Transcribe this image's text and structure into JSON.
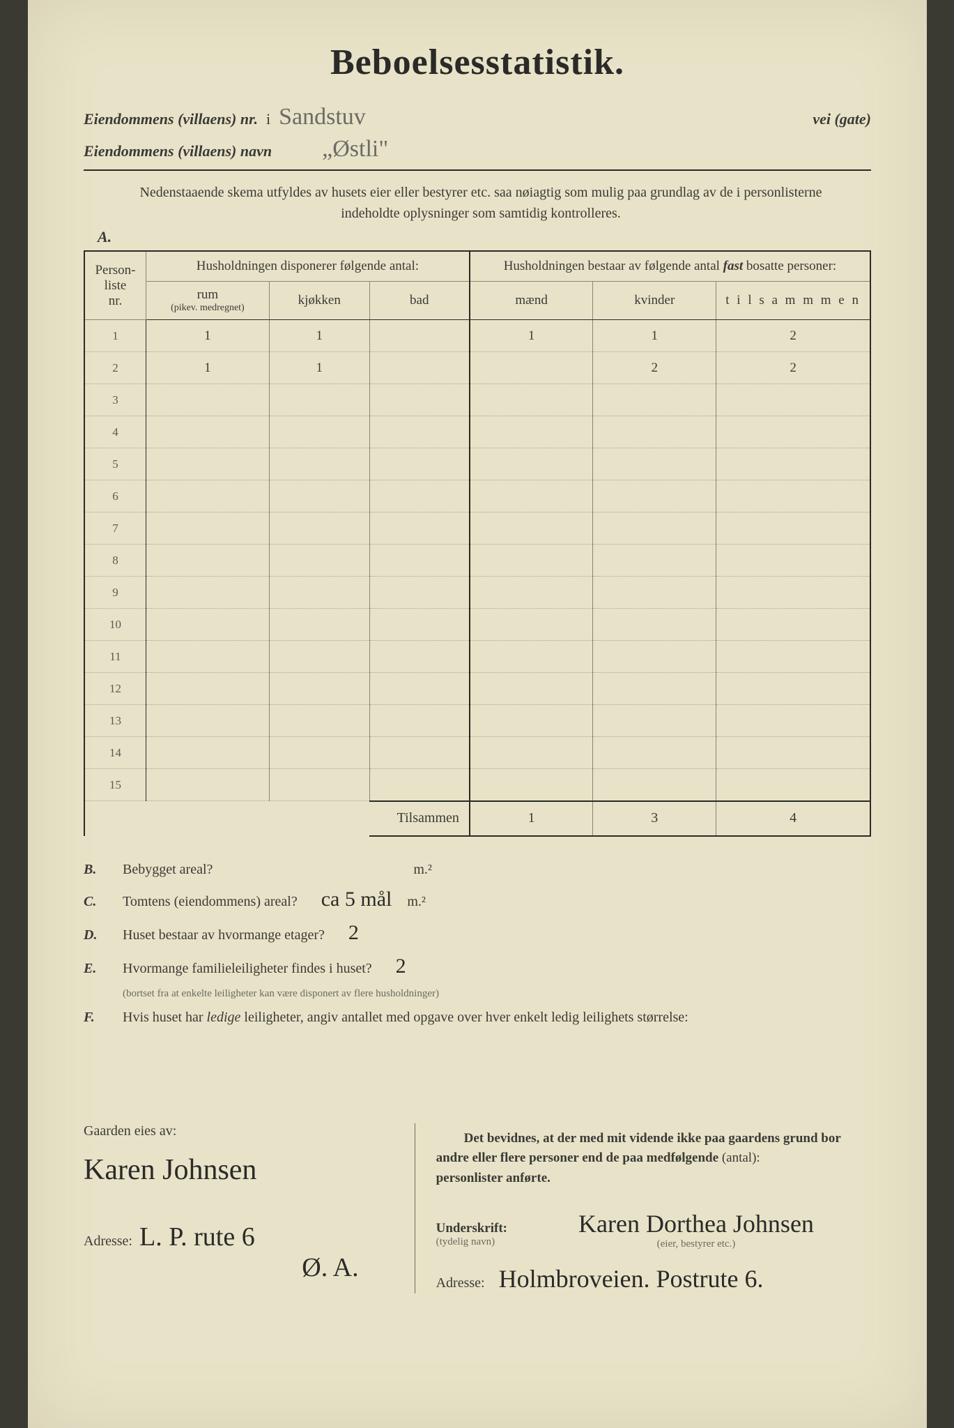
{
  "title": "Beboelsesstatistik.",
  "header": {
    "nr_label": "Eiendommens (villaens) nr.",
    "nr_value": "i",
    "street_hand": "Sandstuv",
    "vei_label": "vei (gate)",
    "navn_label": "Eiendommens (villaens) navn",
    "navn_value": "„Østli\""
  },
  "sectionA": {
    "letter": "A.",
    "instructions": "Nedenstaaende skema utfyldes av husets eier eller bestyrer etc. saa nøiagtig som mulig paa grundlag av de i personlisterne indeholdte oplysninger som samtidig kontrolleres.",
    "table": {
      "col_personliste": "Person-\nliste\nnr.",
      "grp_left": "Husholdningen disponerer følgende antal:",
      "col_rum": "rum",
      "col_rum_sub": "(pikev. medregnet)",
      "col_kjokken": "kjøkken",
      "col_bad": "bad",
      "grp_right": "Husholdningen bestaar av følgende antal fast bosatte personer:",
      "grp_right_em": "fast",
      "col_maend": "mænd",
      "col_kvinder": "kvinder",
      "col_tilsammen": "t i l s a m m m e n",
      "row_count": 15,
      "rows": [
        {
          "nr": "1",
          "rum": "1",
          "kjokken": "1",
          "bad": "",
          "maend": "1",
          "kvinder": "1",
          "tils": "2"
        },
        {
          "nr": "2",
          "rum": "1",
          "kjokken": "1",
          "bad": "",
          "maend": "",
          "kvinder": "2",
          "tils": "2"
        },
        {
          "nr": "3",
          "rum": "",
          "kjokken": "",
          "bad": "",
          "maend": "",
          "kvinder": "",
          "tils": ""
        },
        {
          "nr": "4",
          "rum": "",
          "kjokken": "",
          "bad": "",
          "maend": "",
          "kvinder": "",
          "tils": ""
        },
        {
          "nr": "5",
          "rum": "",
          "kjokken": "",
          "bad": "",
          "maend": "",
          "kvinder": "",
          "tils": ""
        },
        {
          "nr": "6",
          "rum": "",
          "kjokken": "",
          "bad": "",
          "maend": "",
          "kvinder": "",
          "tils": ""
        },
        {
          "nr": "7",
          "rum": "",
          "kjokken": "",
          "bad": "",
          "maend": "",
          "kvinder": "",
          "tils": ""
        },
        {
          "nr": "8",
          "rum": "",
          "kjokken": "",
          "bad": "",
          "maend": "",
          "kvinder": "",
          "tils": ""
        },
        {
          "nr": "9",
          "rum": "",
          "kjokken": "",
          "bad": "",
          "maend": "",
          "kvinder": "",
          "tils": ""
        },
        {
          "nr": "10",
          "rum": "",
          "kjokken": "",
          "bad": "",
          "maend": "",
          "kvinder": "",
          "tils": ""
        },
        {
          "nr": "11",
          "rum": "",
          "kjokken": "",
          "bad": "",
          "maend": "",
          "kvinder": "",
          "tils": ""
        },
        {
          "nr": "12",
          "rum": "",
          "kjokken": "",
          "bad": "",
          "maend": "",
          "kvinder": "",
          "tils": ""
        },
        {
          "nr": "13",
          "rum": "",
          "kjokken": "",
          "bad": "",
          "maend": "",
          "kvinder": "",
          "tils": ""
        },
        {
          "nr": "14",
          "rum": "",
          "kjokken": "",
          "bad": "",
          "maend": "",
          "kvinder": "",
          "tils": ""
        },
        {
          "nr": "15",
          "rum": "",
          "kjokken": "",
          "bad": "",
          "maend": "",
          "kvinder": "",
          "tils": ""
        }
      ],
      "total_label": "Tilsammen",
      "total": {
        "maend": "1",
        "kvinder": "3",
        "tils": "4"
      }
    }
  },
  "questions": {
    "B": {
      "l": "B.",
      "q": "Bebygget areal?",
      "ans": "",
      "unit": "m.²"
    },
    "C": {
      "l": "C.",
      "q": "Tomtens (eiendommens) areal?",
      "ans": "ca 5 mål",
      "unit": "m.²"
    },
    "D": {
      "l": "D.",
      "q": "Huset bestaar av hvormange etager?",
      "ans": "2",
      "unit": ""
    },
    "E": {
      "l": "E.",
      "q": "Hvormange familieleiligheter findes i huset?",
      "ans": "2",
      "unit": "",
      "sub": "(bortset fra at enkelte leiligheter kan være disponert av flere husholdninger)"
    },
    "F": {
      "l": "F.",
      "q": "Hvis huset har ledige leiligheter, angiv antallet med opgave over hver enkelt ledig leilighets størrelse:",
      "ans": "",
      "unit": ""
    }
  },
  "bottom": {
    "left": {
      "owner_label": "Gaarden eies av:",
      "owner_sig": "Karen Johnsen",
      "addr_label": "Adresse:",
      "addr_value": "L. P. rute 6",
      "addr_value2": "Ø. A."
    },
    "right": {
      "attest": "Det bevidnes, at der med mit vidende ikke paa gaardens grund bor andre eller flere personer end de paa medfølgende (antal):                     personlister anførte.",
      "underskrift_label": "Underskrift:",
      "underskrift_sub": "(tydelig navn)",
      "signer": "Karen Dorthea Johnsen",
      "signer_sub": "(eier, bestyrer etc.)",
      "addr_label": "Adresse:",
      "addr_value": "Holmbroveien. Postrute 6."
    }
  },
  "style": {
    "page_bg": "#e8e3c8",
    "ink": "#2a2a28",
    "faint_ink": "#9a9a92",
    "rule_color": "#2a2a28",
    "grid_color": "#8a866f"
  }
}
